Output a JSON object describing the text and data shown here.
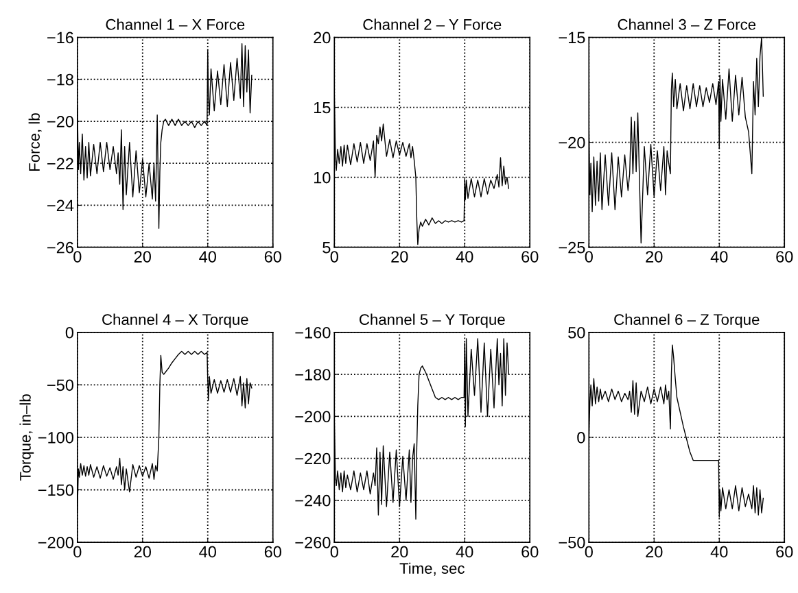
{
  "chart_data": [
    {
      "type": "line",
      "title": "Channel 1 – X Force",
      "ylabel": "Force, lb",
      "color": "#000000",
      "grid": true,
      "line_style": "solid",
      "xlim": [
        0,
        60
      ],
      "xticks": [
        0,
        20,
        40,
        60
      ],
      "ylim": [
        -26,
        -16
      ],
      "yticks": [
        -26,
        -24,
        -22,
        -20,
        -18,
        -16
      ],
      "x": [
        0,
        0.3,
        0.6,
        1,
        1.5,
        2,
        2.5,
        3,
        3.5,
        4,
        5,
        6,
        7,
        8,
        9,
        10,
        11,
        12,
        12.5,
        13,
        13.5,
        14,
        14.5,
        15,
        16,
        17,
        18,
        19,
        20,
        21,
        22,
        23,
        23.5,
        24,
        24.5,
        25,
        25.3,
        25.6,
        26,
        26.5,
        27,
        28,
        29,
        30,
        31,
        32,
        33,
        34,
        35,
        36,
        37,
        38,
        39,
        39.8,
        40,
        40.2,
        40.5,
        41,
        42,
        43,
        44,
        45,
        46,
        47,
        48,
        49,
        50,
        50.5,
        51,
        51.5,
        52,
        52.5,
        53,
        53.5
      ],
      "values": [
        -19.3,
        -22.3,
        -21,
        -22.5,
        -20.6,
        -22.8,
        -21.2,
        -22.7,
        -21,
        -22.6,
        -21.1,
        -22.5,
        -21,
        -22.4,
        -21,
        -22.3,
        -21.2,
        -22.5,
        -21.5,
        -23,
        -20.4,
        -24.2,
        -21.2,
        -23.5,
        -21,
        -23.6,
        -21.4,
        -23.4,
        -21.8,
        -23.6,
        -22,
        -23.7,
        -22,
        -23.8,
        -19.7,
        -25.1,
        -22.4,
        -21,
        -20.4,
        -20,
        -19.9,
        -20.2,
        -19.9,
        -20.2,
        -19.9,
        -20.2,
        -20,
        -20.2,
        -20,
        -20.3,
        -20,
        -20.2,
        -20,
        -20.2,
        -16.6,
        -18.8,
        -19.7,
        -17.5,
        -19.5,
        -17.6,
        -19.2,
        -17.3,
        -19.3,
        -17.2,
        -19,
        -17,
        -18.9,
        -16.3,
        -19.3,
        -16.4,
        -18.6,
        -16.6,
        -19.6,
        -17.8
      ]
    },
    {
      "type": "line",
      "title": "Channel 2 – Y Force",
      "color": "#000000",
      "grid": true,
      "line_style": "solid",
      "xlim": [
        0,
        60
      ],
      "xticks": [
        0,
        20,
        40,
        60
      ],
      "ylim": [
        5,
        20
      ],
      "yticks": [
        5,
        10,
        15,
        20
      ],
      "x": [
        0,
        0.3,
        0.6,
        1,
        1.5,
        2,
        2.5,
        3,
        3.5,
        4,
        5,
        6,
        7,
        8,
        9,
        10,
        11,
        12,
        12.5,
        13,
        13.5,
        14,
        14.5,
        15,
        16,
        17,
        18,
        19,
        20,
        21,
        22,
        23,
        23.5,
        24,
        24.5,
        25,
        25.3,
        25.6,
        26,
        26.5,
        27,
        28,
        29,
        30,
        31,
        32,
        33,
        34,
        35,
        36,
        37,
        38,
        39,
        39.8,
        40,
        40.2,
        40.5,
        41,
        42,
        43,
        44,
        45,
        46,
        47,
        48,
        49,
        50,
        50.5,
        51,
        51.5,
        52,
        52.5,
        53,
        53.5
      ],
      "values": [
        16,
        11.8,
        10.5,
        12,
        11,
        12.2,
        10.8,
        12.3,
        11,
        12.3,
        10.9,
        12.4,
        11.1,
        12.5,
        11,
        12.4,
        11.2,
        12.6,
        10,
        13,
        12.4,
        13.6,
        12.6,
        13.8,
        11.5,
        12.7,
        11.4,
        12.6,
        11.6,
        12.5,
        11.5,
        12.4,
        11.4,
        12.2,
        11.2,
        10,
        7,
        5.2,
        6.3,
        6.8,
        6.5,
        7,
        6.6,
        7.1,
        6.7,
        6.9,
        6.7,
        6.9,
        6.8,
        6.9,
        6.8,
        6.9,
        6.8,
        6.9,
        9.9,
        8.4,
        9.8,
        8.5,
        9.9,
        8.6,
        9.8,
        8.6,
        9.9,
        8.8,
        9.8,
        9.2,
        10.2,
        9.3,
        11.4,
        9.4,
        10.8,
        9.5,
        10,
        9.2
      ]
    },
    {
      "type": "line",
      "title": "Channel 3 – Z Force",
      "color": "#000000",
      "grid": true,
      "line_style": "solid",
      "xlim": [
        0,
        60
      ],
      "xticks": [
        0,
        20,
        40,
        60
      ],
      "ylim": [
        -25,
        -15
      ],
      "yticks": [
        -25,
        -20,
        -15
      ],
      "x": [
        0,
        0.3,
        0.6,
        1,
        1.5,
        2,
        2.5,
        3,
        3.5,
        4,
        5,
        6,
        7,
        8,
        9,
        10,
        11,
        12,
        12.5,
        13,
        13.5,
        14,
        14.5,
        15,
        16,
        17,
        18,
        19,
        20,
        21,
        22,
        23,
        23.5,
        24,
        24.5,
        25,
        25.3,
        25.6,
        26,
        26.5,
        27,
        28,
        29,
        30,
        31,
        32,
        33,
        34,
        35,
        36,
        37,
        38,
        39,
        39.8,
        40,
        40.2,
        40.5,
        41,
        42,
        43,
        44,
        45,
        46,
        47,
        48,
        49,
        50,
        50.5,
        51,
        51.5,
        52,
        52.5,
        53,
        53.5
      ],
      "values": [
        -19.3,
        -22.5,
        -21,
        -23.3,
        -20.7,
        -23,
        -20.9,
        -22.8,
        -20.5,
        -23.2,
        -20.6,
        -23,
        -20.5,
        -23.2,
        -20.7,
        -22.6,
        -20.6,
        -22.3,
        -21.5,
        -18.8,
        -21.5,
        -19,
        -21.4,
        -18.6,
        -24.8,
        -20.2,
        -22.5,
        -20.1,
        -22.6,
        -20.4,
        -22.3,
        -20.2,
        -22.5,
        -20.4,
        -21,
        -21.5,
        -17.5,
        -16.7,
        -18.3,
        -17,
        -18.4,
        -17.2,
        -18.5,
        -17.3,
        -18.4,
        -17.2,
        -18.3,
        -17.3,
        -18.3,
        -17.4,
        -18.1,
        -17.2,
        -18.2,
        -17.1,
        -20.3,
        -16.8,
        -19,
        -17,
        -18.9,
        -16.5,
        -19,
        -16.8,
        -18.7,
        -16.9,
        -18.8,
        -19.5,
        -21.5,
        -17.1,
        -18.7,
        -16,
        -18.3,
        -15.9,
        -15,
        -17.8
      ]
    },
    {
      "type": "line",
      "title": "Channel 4 – X Torque",
      "ylabel": "Torque, in–lb",
      "color": "#000000",
      "grid": true,
      "line_style": "solid",
      "xlim": [
        0,
        60
      ],
      "xticks": [
        0,
        20,
        40,
        60
      ],
      "ylim": [
        -200,
        0
      ],
      "yticks": [
        -200,
        -150,
        -100,
        -50,
        0
      ],
      "x": [
        0,
        0.3,
        0.6,
        1,
        1.5,
        2,
        2.5,
        3,
        3.5,
        4,
        5,
        6,
        7,
        8,
        9,
        10,
        11,
        12,
        12.5,
        13,
        13.5,
        14,
        14.5,
        15,
        16,
        17,
        18,
        19,
        20,
        21,
        22,
        23,
        23.5,
        24,
        24.5,
        25,
        25.3,
        25.6,
        26,
        26.5,
        27,
        28,
        29,
        30,
        31,
        32,
        33,
        34,
        35,
        36,
        37,
        38,
        39,
        39.8,
        40,
        40.2,
        40.5,
        41,
        42,
        43,
        44,
        45,
        46,
        47,
        48,
        49,
        50,
        50.5,
        51,
        51.5,
        52,
        52.5,
        53,
        53.5
      ],
      "values": [
        -170,
        -130,
        -138,
        -125,
        -136,
        -127,
        -137,
        -128,
        -136,
        -126,
        -138,
        -128,
        -139,
        -127,
        -137,
        -129,
        -140,
        -128,
        -136,
        -120,
        -145,
        -128,
        -150,
        -130,
        -152,
        -126,
        -138,
        -127,
        -137,
        -128,
        -139,
        -125,
        -140,
        -127,
        -132,
        -100,
        -50,
        -22,
        -38,
        -40,
        -38,
        -34,
        -29,
        -25,
        -21,
        -18,
        -21,
        -18,
        -21,
        -18,
        -21,
        -18,
        -21,
        -19,
        -45,
        -65,
        -42,
        -58,
        -45,
        -58,
        -46,
        -57,
        -45,
        -57,
        -44,
        -60,
        -42,
        -70,
        -48,
        -72,
        -44,
        -68,
        -48,
        -53
      ]
    },
    {
      "type": "line",
      "title": "Channel 5 – Y Torque",
      "xlabel": "Time, sec",
      "color": "#000000",
      "grid": true,
      "line_style": "solid",
      "xlim": [
        0,
        60
      ],
      "xticks": [
        0,
        20,
        40,
        60
      ],
      "ylim": [
        -260,
        -160
      ],
      "yticks": [
        -260,
        -240,
        -220,
        -200,
        -180,
        -160
      ],
      "x": [
        0,
        0.3,
        0.6,
        1,
        1.5,
        2,
        2.5,
        3,
        3.5,
        4,
        5,
        6,
        7,
        8,
        9,
        10,
        11,
        12,
        12.5,
        13,
        13.5,
        14,
        14.5,
        15,
        16,
        17,
        18,
        19,
        20,
        21,
        22,
        23,
        23.5,
        24,
        24.5,
        25,
        25.3,
        25.6,
        26,
        26.5,
        27,
        28,
        29,
        30,
        31,
        32,
        33,
        34,
        35,
        36,
        37,
        38,
        39,
        39.8,
        40,
        40.2,
        40.5,
        41,
        42,
        43,
        44,
        45,
        46,
        47,
        48,
        49,
        50,
        50.5,
        51,
        51.5,
        52,
        52.5,
        53,
        53.5
      ],
      "values": [
        -201,
        -228,
        -233,
        -226,
        -235,
        -227,
        -236,
        -226,
        -234,
        -228,
        -235,
        -226,
        -236,
        -227,
        -235,
        -226,
        -237,
        -227,
        -233,
        -215,
        -247,
        -217,
        -242,
        -214,
        -243,
        -217,
        -241,
        -216,
        -243,
        -219,
        -240,
        -216,
        -241,
        -220,
        -213,
        -249,
        -215,
        -195,
        -180,
        -177,
        -176,
        -179,
        -183,
        -187,
        -191,
        -192,
        -191,
        -192,
        -191,
        -192,
        -191,
        -192,
        -191,
        -191,
        -165,
        -205,
        -163,
        -200,
        -168,
        -190,
        -163,
        -198,
        -165,
        -200,
        -168,
        -196,
        -163,
        -185,
        -170,
        -195,
        -163,
        -190,
        -165,
        -180
      ]
    },
    {
      "type": "line",
      "title": "Channel 6 – Z Torque",
      "color": "#000000",
      "grid": true,
      "line_style": "solid",
      "xlim": [
        0,
        60
      ],
      "xticks": [
        0,
        20,
        40,
        60
      ],
      "ylim": [
        -50,
        50
      ],
      "yticks": [
        -50,
        0,
        50
      ],
      "x": [
        0,
        0.3,
        0.6,
        1,
        1.5,
        2,
        2.5,
        3,
        3.5,
        4,
        5,
        6,
        7,
        8,
        9,
        10,
        11,
        12,
        12.5,
        13,
        13.5,
        14,
        14.5,
        15,
        16,
        17,
        18,
        19,
        20,
        21,
        22,
        23,
        23.5,
        24,
        24.5,
        25,
        25.3,
        25.6,
        26,
        26.5,
        27,
        28,
        29,
        30,
        31,
        32,
        33,
        34,
        35,
        36,
        37,
        38,
        39,
        39.8,
        40,
        40.2,
        40.5,
        41,
        42,
        43,
        44,
        45,
        46,
        47,
        48,
        49,
        50,
        50.5,
        51,
        51.5,
        52,
        52.5,
        53,
        53.5
      ],
      "values": [
        0,
        17,
        25,
        15,
        28,
        16,
        24,
        17,
        23,
        18,
        22,
        17,
        23,
        18,
        22,
        17,
        21,
        18,
        22,
        12,
        27,
        11,
        26,
        10,
        22,
        17,
        24,
        16,
        23,
        17,
        24,
        16,
        25,
        18,
        22,
        4,
        30,
        44,
        38,
        28,
        19,
        12,
        5,
        -1,
        -7,
        -11,
        -11,
        -11,
        -11,
        -11,
        -11,
        -11,
        -11,
        -11,
        -38,
        -25,
        -35,
        -24,
        -34,
        -25,
        -34,
        -23,
        -35,
        -24,
        -33,
        -27,
        -34,
        -23,
        -36,
        -24,
        -37,
        -25,
        -36,
        -29
      ]
    }
  ]
}
